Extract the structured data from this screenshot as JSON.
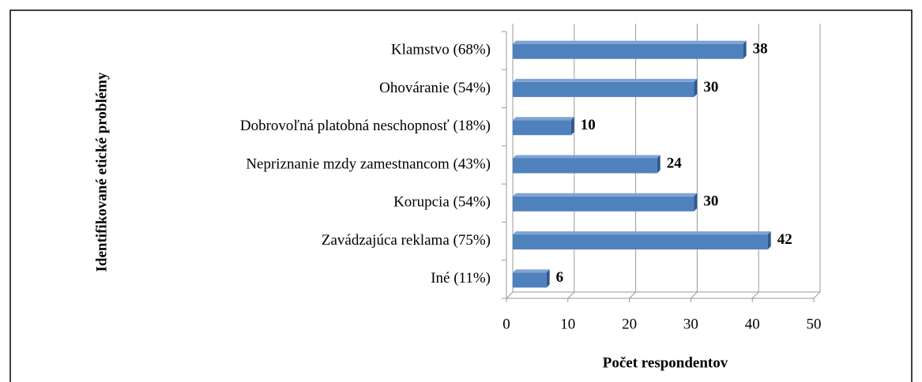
{
  "chart_data": {
    "type": "bar",
    "orientation": "horizontal",
    "categories": [
      "Klamstvo (68%)",
      "Ohováranie (54%)",
      "Dobrovoľná platobná neschopnosť (18%)",
      "Nepriznanie mzdy zamestnancom (43%)",
      "Korupcia (54%)",
      "Zavádzajúca reklama (75%)",
      "Iné (11%)"
    ],
    "values": [
      38,
      30,
      10,
      24,
      30,
      42,
      6
    ],
    "color": "#4f81bd",
    "xlim": [
      0,
      50
    ],
    "xticks": [
      0,
      10,
      20,
      30,
      40,
      50
    ],
    "xlabel": "Počet respondentov",
    "ylabel": "Identifikované etické problémy",
    "grid": true
  }
}
